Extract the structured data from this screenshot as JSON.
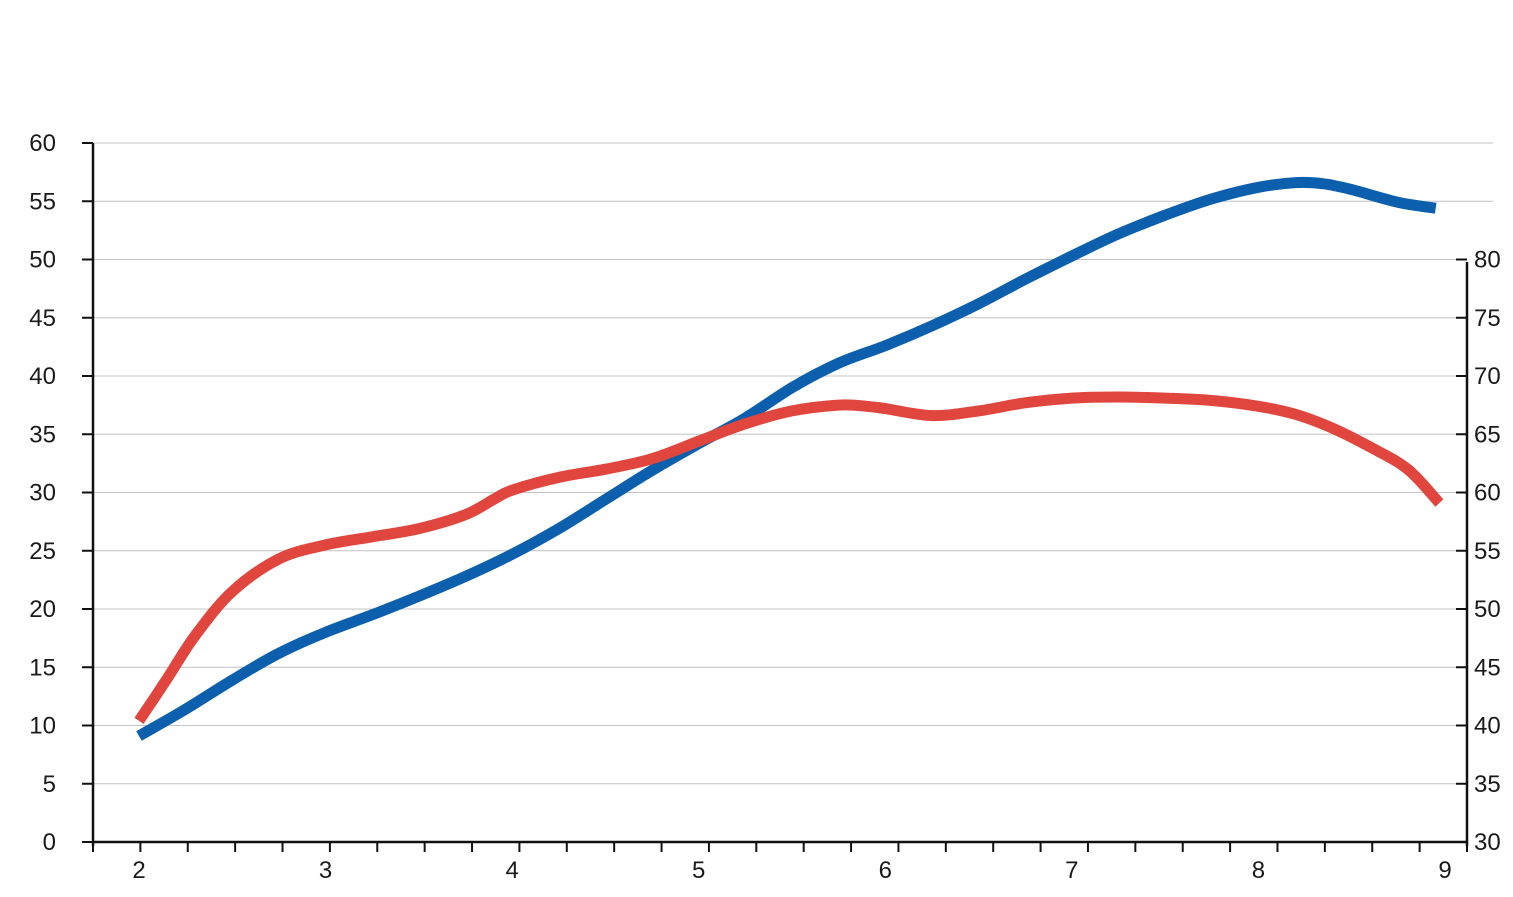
{
  "chart_data": {
    "type": "line",
    "title": "",
    "xlabel": "",
    "ylabel": "",
    "ylabel_right": "",
    "xlim": [
      2,
      9
    ],
    "ylim": [
      0,
      60
    ],
    "ylim_right": [
      30,
      90
    ],
    "grid": true,
    "legend": "none",
    "x_ticks": [
      "2",
      "3",
      "4",
      "5",
      "6",
      "7",
      "8",
      "9"
    ],
    "y_ticks_left": [
      "0",
      "5",
      "10",
      "15",
      "20",
      "25",
      "30",
      "35",
      "40",
      "45",
      "50",
      "55",
      "60"
    ],
    "y_ticks_right": [
      "30",
      "35",
      "40",
      "45",
      "50",
      "55",
      "60",
      "65",
      "70",
      "75",
      "80"
    ],
    "series": [
      {
        "axis": "left",
        "color": "#0b5fad",
        "x": [
          2.0,
          2.25,
          2.5,
          2.75,
          3.0,
          3.25,
          3.5,
          3.75,
          4.0,
          4.25,
          4.5,
          4.75,
          5.0,
          5.25,
          5.5,
          5.75,
          6.0,
          6.25,
          6.5,
          6.75,
          7.0,
          7.25,
          7.5,
          7.75,
          8.0,
          8.2,
          8.35,
          8.5,
          8.75,
          8.95
        ],
        "values": [
          9.1,
          11.4,
          13.9,
          16.2,
          18.0,
          19.5,
          21.1,
          22.8,
          24.7,
          26.9,
          29.4,
          31.9,
          34.2,
          36.4,
          39.0,
          41.1,
          42.6,
          44.3,
          46.2,
          48.3,
          50.3,
          52.2,
          53.8,
          55.2,
          56.2,
          56.6,
          56.5,
          56.0,
          54.9,
          54.4
        ]
      },
      {
        "axis": "right",
        "color": "#e0463e",
        "x": [
          2.0,
          2.15,
          2.3,
          2.5,
          2.75,
          3.0,
          3.25,
          3.5,
          3.75,
          3.9,
          4.0,
          4.25,
          4.5,
          4.75,
          5.0,
          5.25,
          5.5,
          5.75,
          5.9,
          6.0,
          6.25,
          6.5,
          6.75,
          7.0,
          7.25,
          7.5,
          7.75,
          8.0,
          8.2,
          8.4,
          8.6,
          8.8,
          8.97
        ],
        "values": [
          40.4,
          44.0,
          47.7,
          51.5,
          54.3,
          55.5,
          56.2,
          56.9,
          58.1,
          59.4,
          60.2,
          61.3,
          62.0,
          62.9,
          64.4,
          65.9,
          67.0,
          67.5,
          67.4,
          67.2,
          66.6,
          67.0,
          67.7,
          68.1,
          68.2,
          68.1,
          67.9,
          67.4,
          66.7,
          65.5,
          63.9,
          62.0,
          59.1
        ]
      }
    ]
  }
}
